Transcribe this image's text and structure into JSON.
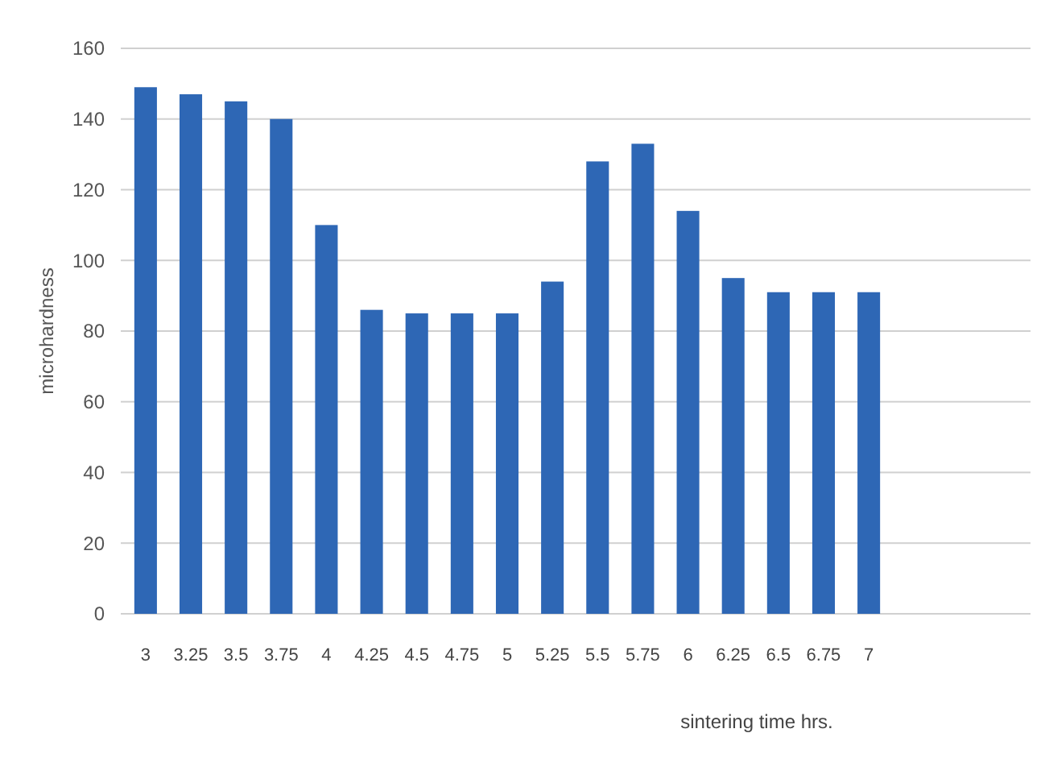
{
  "chart_data": {
    "type": "bar",
    "xlabel": "sintering time hrs.",
    "ylabel": "microhardness",
    "categories": [
      "3",
      "3.25",
      "3.5",
      "3.75",
      "4",
      "4.25",
      "4.5",
      "4.75",
      "5",
      "5.25",
      "5.5",
      "5.75",
      "6",
      "6.25",
      "6.5",
      "6.75",
      "7"
    ],
    "values": [
      149,
      147,
      145,
      140,
      110,
      86,
      85,
      85,
      85,
      94,
      128,
      133,
      114,
      95,
      91,
      91,
      91
    ],
    "color": "#2e67b5",
    "ylim": [
      0,
      160
    ],
    "yticks": [
      0,
      20,
      40,
      60,
      80,
      100,
      120,
      140,
      160
    ],
    "grid": "y"
  }
}
